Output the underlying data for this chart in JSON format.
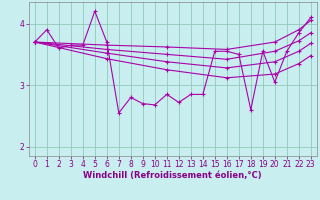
{
  "title": "",
  "xlabel": "Windchill (Refroidissement éolien,°C)",
  "ylabel": "",
  "xlim": [
    -0.5,
    23.5
  ],
  "ylim": [
    1.85,
    4.35
  ],
  "xticks": [
    0,
    1,
    2,
    3,
    4,
    5,
    6,
    7,
    8,
    9,
    10,
    11,
    12,
    13,
    14,
    15,
    16,
    17,
    18,
    19,
    20,
    21,
    22,
    23
  ],
  "yticks": [
    2,
    3,
    4
  ],
  "bg_color": "#c8eef0",
  "grid_color": "#90c8b8",
  "line_color": "#aa00aa",
  "lines": [
    {
      "x": [
        0,
        1,
        2,
        3,
        4,
        5,
        6,
        7,
        8,
        9,
        10,
        11,
        12,
        13,
        14,
        15,
        16,
        17,
        18,
        19,
        20,
        21,
        22,
        23
      ],
      "y": [
        3.7,
        3.9,
        3.6,
        3.65,
        3.65,
        4.2,
        3.7,
        2.55,
        2.8,
        2.7,
        2.68,
        2.85,
        2.72,
        2.85,
        2.85,
        3.55,
        3.55,
        3.5,
        2.6,
        3.55,
        3.05,
        3.55,
        3.85,
        4.1
      ]
    },
    {
      "x": [
        0,
        6,
        11,
        16,
        20,
        22,
        23
      ],
      "y": [
        3.7,
        3.65,
        3.62,
        3.58,
        3.7,
        3.9,
        4.05
      ]
    },
    {
      "x": [
        0,
        6,
        11,
        16,
        20,
        22,
        23
      ],
      "y": [
        3.7,
        3.58,
        3.5,
        3.42,
        3.55,
        3.72,
        3.85
      ]
    },
    {
      "x": [
        0,
        6,
        11,
        16,
        20,
        22,
        23
      ],
      "y": [
        3.7,
        3.52,
        3.38,
        3.28,
        3.38,
        3.55,
        3.68
      ]
    },
    {
      "x": [
        0,
        6,
        11,
        16,
        20,
        22,
        23
      ],
      "y": [
        3.7,
        3.43,
        3.25,
        3.12,
        3.18,
        3.35,
        3.48
      ]
    }
  ]
}
